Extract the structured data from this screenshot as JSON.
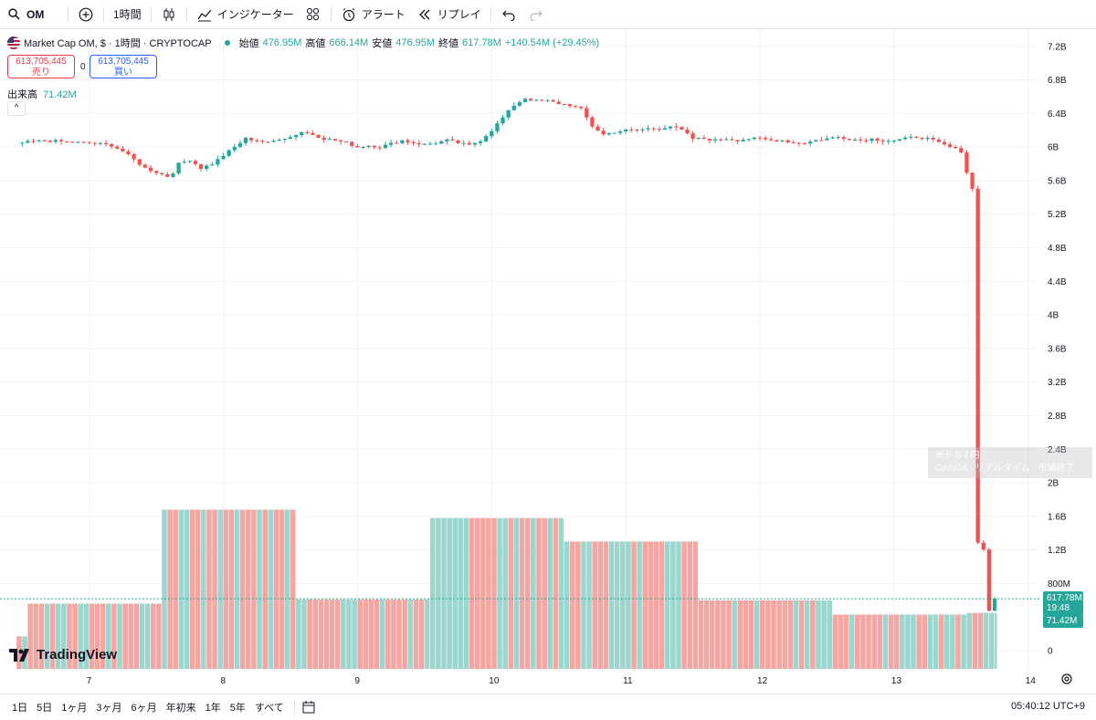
{
  "toolbar": {
    "symbol": "OM",
    "interval": "1時間",
    "indicators_label": "インジケーター",
    "alert_label": "アラート",
    "replay_label": "リプレイ"
  },
  "legend": {
    "title": "Market Cap OM, $ · 1時間 · CRYPTOCAP",
    "open_label": "始値",
    "open_value": "476.95M",
    "high_label": "高値",
    "high_value": "666.14M",
    "low_label": "安値",
    "low_value": "476.95M",
    "close_label": "終値",
    "close_value": "617.78M",
    "change": "+140.54M (+29.45%)"
  },
  "trade": {
    "sell_price": "613,705,445",
    "sell_label": "売り",
    "spread": "0",
    "buy_price": "613,705,445",
    "buy_label": "買い"
  },
  "volume": {
    "label": "出来高",
    "value": "71.42M"
  },
  "collapse_symbol": "^",
  "overlay": {
    "line1": "米ドル / 円",
    "line2": "OANDA · リアルタイム · 市場終了"
  },
  "logo": {
    "text": "TradingView"
  },
  "price_tags": {
    "last": "617.78M",
    "countdown": "19:48",
    "volume": "71.42M"
  },
  "timeframes": [
    "1日",
    "5日",
    "1ヶ月",
    "3ヶ月",
    "6ヶ月",
    "年初来",
    "1年",
    "5年",
    "すべて"
  ],
  "clock": "05:40:12 UTC+9",
  "colors": {
    "up": "#26a69a",
    "down": "#ef5350",
    "grid": "#f0f3fa",
    "vol_up": "#9bd6cf",
    "vol_down": "#f5a6a2"
  },
  "chart_data": {
    "type": "candlestick",
    "title": "Market Cap OM, $ · 1時間 · CRYPTOCAP",
    "y_axis_labels": [
      "7.2B",
      "6.8B",
      "6.4B",
      "6B",
      "5.6B",
      "5.2B",
      "4.8B",
      "4.4B",
      "4B",
      "3.6B",
      "3.2B",
      "2.8B",
      "2.4B",
      "2B",
      "1.6B",
      "1.2B",
      "800M",
      "0"
    ],
    "y_axis_values": [
      7.2,
      6.8,
      6.4,
      6.0,
      5.6,
      5.2,
      4.8,
      4.4,
      4.0,
      3.6,
      3.2,
      2.8,
      2.4,
      2.0,
      1.6,
      1.2,
      0.8,
      0
    ],
    "x_axis_labels": [
      "7",
      "8",
      "9",
      "10",
      "11",
      "12",
      "13",
      "14"
    ],
    "x_axis_positions_hours": [
      12,
      36,
      60,
      84,
      108,
      132,
      156,
      180
    ],
    "ylim_billions": [
      0,
      7.35
    ],
    "close_path_billions": [
      [
        0,
        6.05
      ],
      [
        4,
        6.08
      ],
      [
        8,
        6.06
      ],
      [
        12,
        6.05
      ],
      [
        16,
        6.02
      ],
      [
        18,
        5.95
      ],
      [
        20,
        5.85
      ],
      [
        22,
        5.75
      ],
      [
        24,
        5.7
      ],
      [
        26,
        5.65
      ],
      [
        27,
        5.7
      ],
      [
        28,
        5.8
      ],
      [
        30,
        5.85
      ],
      [
        32,
        5.75
      ],
      [
        34,
        5.8
      ],
      [
        36,
        5.9
      ],
      [
        38,
        6.0
      ],
      [
        40,
        6.1
      ],
      [
        42,
        6.08
      ],
      [
        44,
        6.05
      ],
      [
        46,
        6.1
      ],
      [
        48,
        6.12
      ],
      [
        50,
        6.18
      ],
      [
        52,
        6.15
      ],
      [
        54,
        6.1
      ],
      [
        56,
        6.08
      ],
      [
        58,
        6.05
      ],
      [
        60,
        6.0
      ],
      [
        62,
        6.02
      ],
      [
        64,
        6.0
      ],
      [
        66,
        6.04
      ],
      [
        68,
        6.08
      ],
      [
        70,
        6.05
      ],
      [
        72,
        6.03
      ],
      [
        74,
        6.05
      ],
      [
        76,
        6.08
      ],
      [
        78,
        6.05
      ],
      [
        80,
        6.02
      ],
      [
        82,
        6.08
      ],
      [
        84,
        6.2
      ],
      [
        86,
        6.35
      ],
      [
        88,
        6.5
      ],
      [
        90,
        6.58
      ],
      [
        92,
        6.55
      ],
      [
        94,
        6.55
      ],
      [
        96,
        6.52
      ],
      [
        98,
        6.5
      ],
      [
        100,
        6.45
      ],
      [
        102,
        6.25
      ],
      [
        104,
        6.15
      ],
      [
        106,
        6.18
      ],
      [
        108,
        6.2
      ],
      [
        110,
        6.2
      ],
      [
        112,
        6.22
      ],
      [
        114,
        6.22
      ],
      [
        116,
        6.25
      ],
      [
        118,
        6.2
      ],
      [
        120,
        6.1
      ],
      [
        122,
        6.1
      ],
      [
        124,
        6.08
      ],
      [
        126,
        6.1
      ],
      [
        128,
        6.08
      ],
      [
        130,
        6.1
      ],
      [
        132,
        6.1
      ],
      [
        134,
        6.08
      ],
      [
        136,
        6.08
      ],
      [
        138,
        6.05
      ],
      [
        140,
        6.05
      ],
      [
        142,
        6.08
      ],
      [
        144,
        6.1
      ],
      [
        146,
        6.12
      ],
      [
        148,
        6.1
      ],
      [
        150,
        6.08
      ],
      [
        152,
        6.1
      ],
      [
        154,
        6.08
      ],
      [
        156,
        6.08
      ],
      [
        158,
        6.1
      ],
      [
        160,
        6.12
      ],
      [
        162,
        6.1
      ],
      [
        164,
        6.05
      ],
      [
        166,
        6.0
      ],
      [
        168,
        5.95
      ],
      [
        169,
        5.7
      ],
      [
        170,
        5.5
      ],
      [
        171,
        1.3
      ],
      [
        172,
        1.2
      ],
      [
        173,
        0.48
      ],
      [
        174,
        0.62
      ]
    ],
    "volume_blocks": [
      {
        "start_hour": -1,
        "end_hour": 1,
        "value_billions": 0.17
      },
      {
        "start_hour": 1,
        "end_hour": 25,
        "value_billions": 0.56
      },
      {
        "start_hour": 25,
        "end_hour": 49,
        "value_billions": 1.68
      },
      {
        "start_hour": 49,
        "end_hour": 73,
        "value_billions": 0.61
      },
      {
        "start_hour": 73,
        "end_hour": 97,
        "value_billions": 1.58
      },
      {
        "start_hour": 97,
        "end_hour": 121,
        "value_billions": 1.3
      },
      {
        "start_hour": 121,
        "end_hour": 145,
        "value_billions": 0.6
      },
      {
        "start_hour": 145,
        "end_hour": 169,
        "value_billions": 0.43
      },
      {
        "start_hour": 169,
        "end_hour": 174.5,
        "value_billions": 0.45
      }
    ],
    "last_price_billions": 0.61778
  }
}
